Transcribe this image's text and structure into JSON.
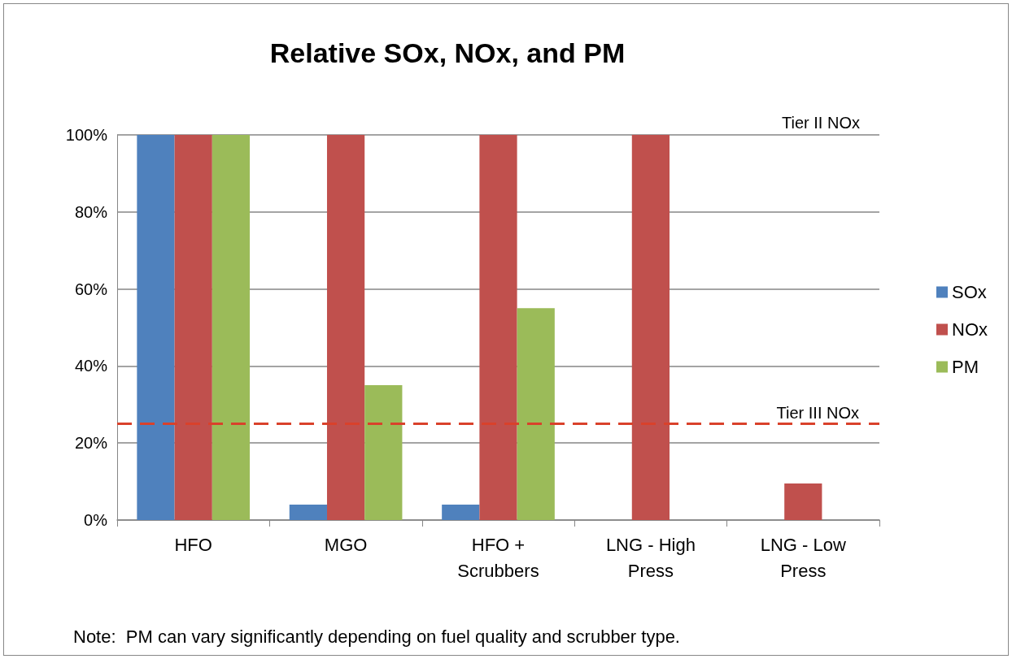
{
  "chart_data": {
    "type": "bar",
    "title": "Relative SOx, NOx, and PM",
    "categories": [
      "HFO",
      "MGO",
      "HFO +\nScrubbers",
      "LNG - High\nPress",
      "LNG - Low\nPress"
    ],
    "series": [
      {
        "name": "SOx",
        "color": "#4f81bd",
        "values": [
          100,
          4,
          4,
          0,
          0
        ]
      },
      {
        "name": "NOx",
        "color": "#c0504d",
        "values": [
          100,
          100,
          100,
          100,
          9.5
        ]
      },
      {
        "name": "PM",
        "color": "#9bbb59",
        "values": [
          100,
          35,
          55,
          0,
          0
        ]
      }
    ],
    "ylim": [
      0,
      100
    ],
    "yticks": [
      {
        "value": 0,
        "label": "0%"
      },
      {
        "value": 20,
        "label": "20%"
      },
      {
        "value": 40,
        "label": "40%"
      },
      {
        "value": 60,
        "label": "60%"
      },
      {
        "value": 80,
        "label": "80%"
      },
      {
        "value": 100,
        "label": "100%"
      }
    ],
    "grid": "y",
    "legend": "right",
    "ref_lines": [
      {
        "axis": "y",
        "value": 25,
        "label": "Tier III NOx",
        "color": "#d9412b",
        "line_style": "dashed"
      }
    ],
    "annotations": [
      "Tier II NOx",
      "Note:  PM can vary significantly depending on fuel quality and scrubber type."
    ]
  }
}
